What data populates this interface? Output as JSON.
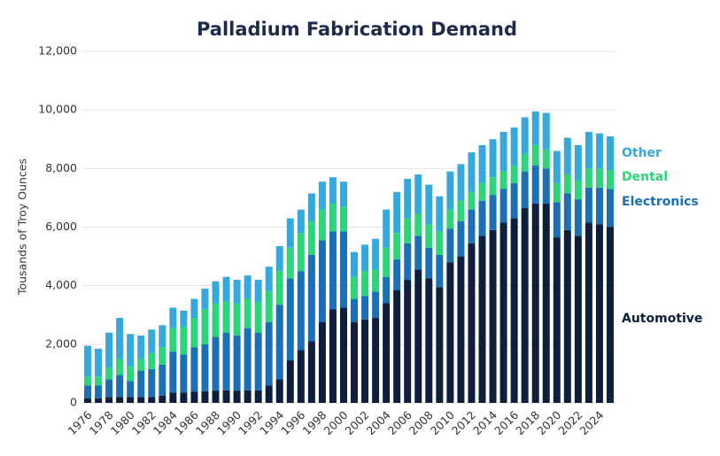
{
  "chart_data": {
    "type": "stacked_bar",
    "title": "Palladium Fabrication Demand",
    "y_label": "Tousands of Troy Ounces",
    "categories": [
      "1976",
      null,
      "1978",
      null,
      "1980",
      null,
      "1982",
      null,
      "1984",
      null,
      "1986",
      null,
      "1988",
      null,
      "1990",
      null,
      "1992",
      null,
      "1994",
      null,
      "1996",
      null,
      "1998",
      null,
      "2000",
      null,
      "2002",
      null,
      "2004",
      null,
      "2006",
      null,
      "2008",
      null,
      "2010",
      null,
      "2012",
      null,
      "2014",
      null,
      "2016",
      null,
      "2018",
      null,
      "2020",
      null,
      "2022",
      null,
      "2024",
      null
    ],
    "series": [
      {
        "name": "Automotive",
        "color": "#0d1f3c",
        "values": [
          150,
          150,
          200,
          200,
          200,
          200,
          200,
          250,
          350,
          350,
          380,
          400,
          420,
          430,
          420,
          430,
          430,
          600,
          800,
          1450,
          1800,
          2100,
          2750,
          3200,
          3250,
          2750,
          2850,
          2900,
          3400,
          3850,
          4200,
          4550,
          4250,
          3950,
          4800,
          5000,
          5450,
          5700,
          5900,
          6150,
          6300,
          6650,
          6800,
          6800,
          5650,
          5900,
          5700,
          6150,
          6100,
          6000
        ]
      },
      {
        "name": "Electronics",
        "color": "#1a6fb5",
        "values": [
          450,
          450,
          600,
          750,
          550,
          900,
          950,
          1050,
          1400,
          1300,
          1520,
          1600,
          1830,
          1970,
          1880,
          2120,
          1970,
          2150,
          2550,
          2800,
          2700,
          2950,
          2800,
          2650,
          2600,
          800,
          800,
          900,
          900,
          1050,
          1250,
          1150,
          1050,
          1100,
          1150,
          1200,
          1150,
          1200,
          1200,
          1150,
          1200,
          1250,
          1300,
          1200,
          1200,
          1250,
          1250,
          1200,
          1250,
          1300
        ]
      },
      {
        "name": "Dental",
        "color": "#2ed47a",
        "values": [
          300,
          300,
          400,
          550,
          500,
          400,
          550,
          600,
          800,
          950,
          1000,
          1200,
          1150,
          1050,
          1100,
          1000,
          1050,
          1050,
          1150,
          1050,
          1300,
          1150,
          1050,
          950,
          850,
          750,
          850,
          750,
          1000,
          900,
          850,
          750,
          800,
          800,
          650,
          700,
          600,
          600,
          600,
          600,
          600,
          600,
          700,
          650,
          650,
          650,
          650,
          650,
          650,
          650
        ]
      },
      {
        "name": "Other",
        "color": "#35a8dc",
        "values": [
          1050,
          950,
          1200,
          1400,
          1100,
          800,
          800,
          750,
          700,
          550,
          650,
          700,
          750,
          850,
          800,
          800,
          750,
          850,
          850,
          1000,
          800,
          950,
          950,
          900,
          850,
          850,
          900,
          1050,
          1300,
          1400,
          1350,
          1350,
          1350,
          1200,
          1300,
          1250,
          1350,
          1300,
          1300,
          1350,
          1300,
          1250,
          1150,
          1250,
          1100,
          1250,
          1200,
          1250,
          1200,
          1150
        ]
      }
    ],
    "ylim": [
      0,
      12000
    ],
    "yticks": [
      0,
      {
        "value": 2000,
        "label": "2,000"
      },
      {
        "value": 4000,
        "label": "4,000"
      },
      {
        "value": 6000,
        "label": "6,000"
      },
      {
        "value": 8000,
        "label": "8,000"
      },
      {
        "value": 10000,
        "label": "10,000"
      },
      {
        "value": 12000,
        "label": "12,000"
      }
    ],
    "grid": true
  }
}
